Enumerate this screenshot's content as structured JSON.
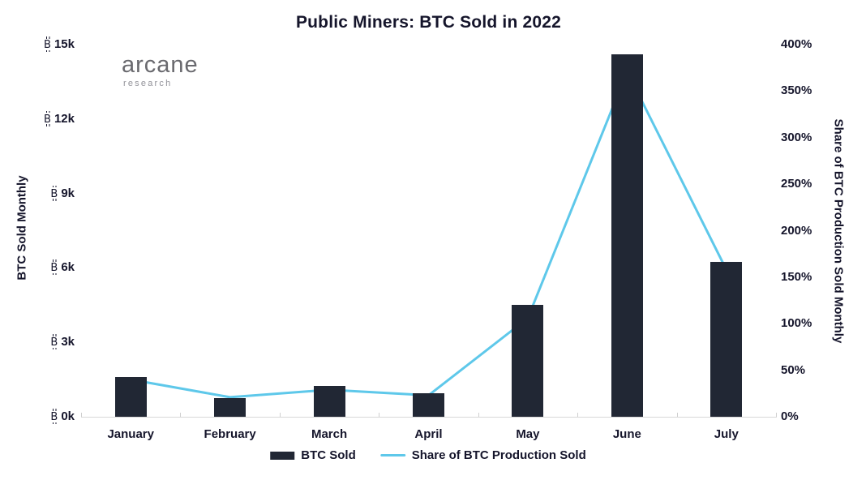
{
  "title": "Public Miners: BTC Sold in 2022",
  "logo": {
    "name": "arcane",
    "subtitle": "research"
  },
  "colors": {
    "bar": "#212734",
    "line": "#5EC8EA",
    "text": "#15152B",
    "axis_line": "#D8D8D8",
    "logo_name": "#69696E",
    "logo_subtitle": "#93939A"
  },
  "chart_data": {
    "type": "bar",
    "subtype": "combo-bar-line-dual-axis",
    "categories": [
      "January",
      "February",
      "March",
      "April",
      "May",
      "June",
      "July"
    ],
    "series": [
      {
        "name": "BTC Sold",
        "type": "bar",
        "axis": "left",
        "values": [
          1600,
          750,
          1250,
          950,
          4500,
          14600,
          6250
        ]
      },
      {
        "name": "Share of BTC Production Sold",
        "type": "line",
        "axis": "right",
        "values_pct": [
          40,
          21,
          29,
          23,
          106,
          371,
          158
        ]
      }
    ],
    "left_axis": {
      "title": "BTC Sold Monthly",
      "unit_symbol": "₿",
      "ticks": [
        "0k",
        "3k",
        "6k",
        "9k",
        "12k",
        "15k"
      ],
      "min": 0,
      "max": 15000
    },
    "right_axis": {
      "title": "Share of BTC Production Sold Monthly",
      "ticks": [
        "0%",
        "50%",
        "100%",
        "150%",
        "200%",
        "250%",
        "300%",
        "350%",
        "400%"
      ],
      "min": 0,
      "max": 400
    },
    "legend": [
      {
        "label": "BTC Sold",
        "swatch": "bar"
      },
      {
        "label": "Share of BTC Production Sold",
        "swatch": "line"
      }
    ],
    "grid": false,
    "legend_position": "bottom-center"
  }
}
